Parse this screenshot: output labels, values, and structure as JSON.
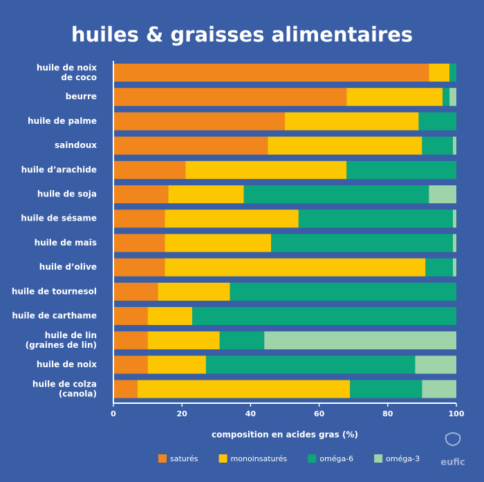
{
  "chart_data": {
    "type": "stacked-barh",
    "title": "huiles & graisses alimentaires",
    "categories": [
      "huile de noix\nde coco",
      "beurre",
      "huile de palme",
      "saindoux",
      "huile d’arachide",
      "huile de soja",
      "huile de sésame",
      "huile de maïs",
      "huile d’olive",
      "huile de tournesol",
      "huile de carthame",
      "huile de lin\n(graines de lin)",
      "huile de noix",
      "huile de colza\n(canola)"
    ],
    "series": [
      {
        "name": "saturés",
        "color": "#f0861c",
        "values": [
          92,
          68,
          50,
          45,
          21,
          16,
          15,
          15,
          15,
          13,
          10,
          10,
          10,
          7
        ]
      },
      {
        "name": "monoinsaturés",
        "color": "#fcc600",
        "values": [
          6,
          28,
          39,
          45,
          47,
          22,
          39,
          31,
          76,
          21,
          13,
          21,
          17,
          62
        ]
      },
      {
        "name": "oméga-6",
        "color": "#0ba67b",
        "values": [
          2,
          2,
          11,
          9,
          32,
          54,
          45,
          53,
          8,
          66,
          77,
          13,
          61,
          21
        ]
      },
      {
        "name": "oméga-3",
        "color": "#9dd4aa",
        "values": [
          0,
          2,
          0,
          1,
          0,
          8,
          1,
          1,
          1,
          0,
          0,
          56,
          12,
          10
        ]
      }
    ],
    "xlim": [
      0,
      100
    ],
    "xticks": [
      0,
      20,
      40,
      60,
      80,
      100
    ],
    "xlabel": "composition en acides gras (%)",
    "logo": "eufic"
  }
}
